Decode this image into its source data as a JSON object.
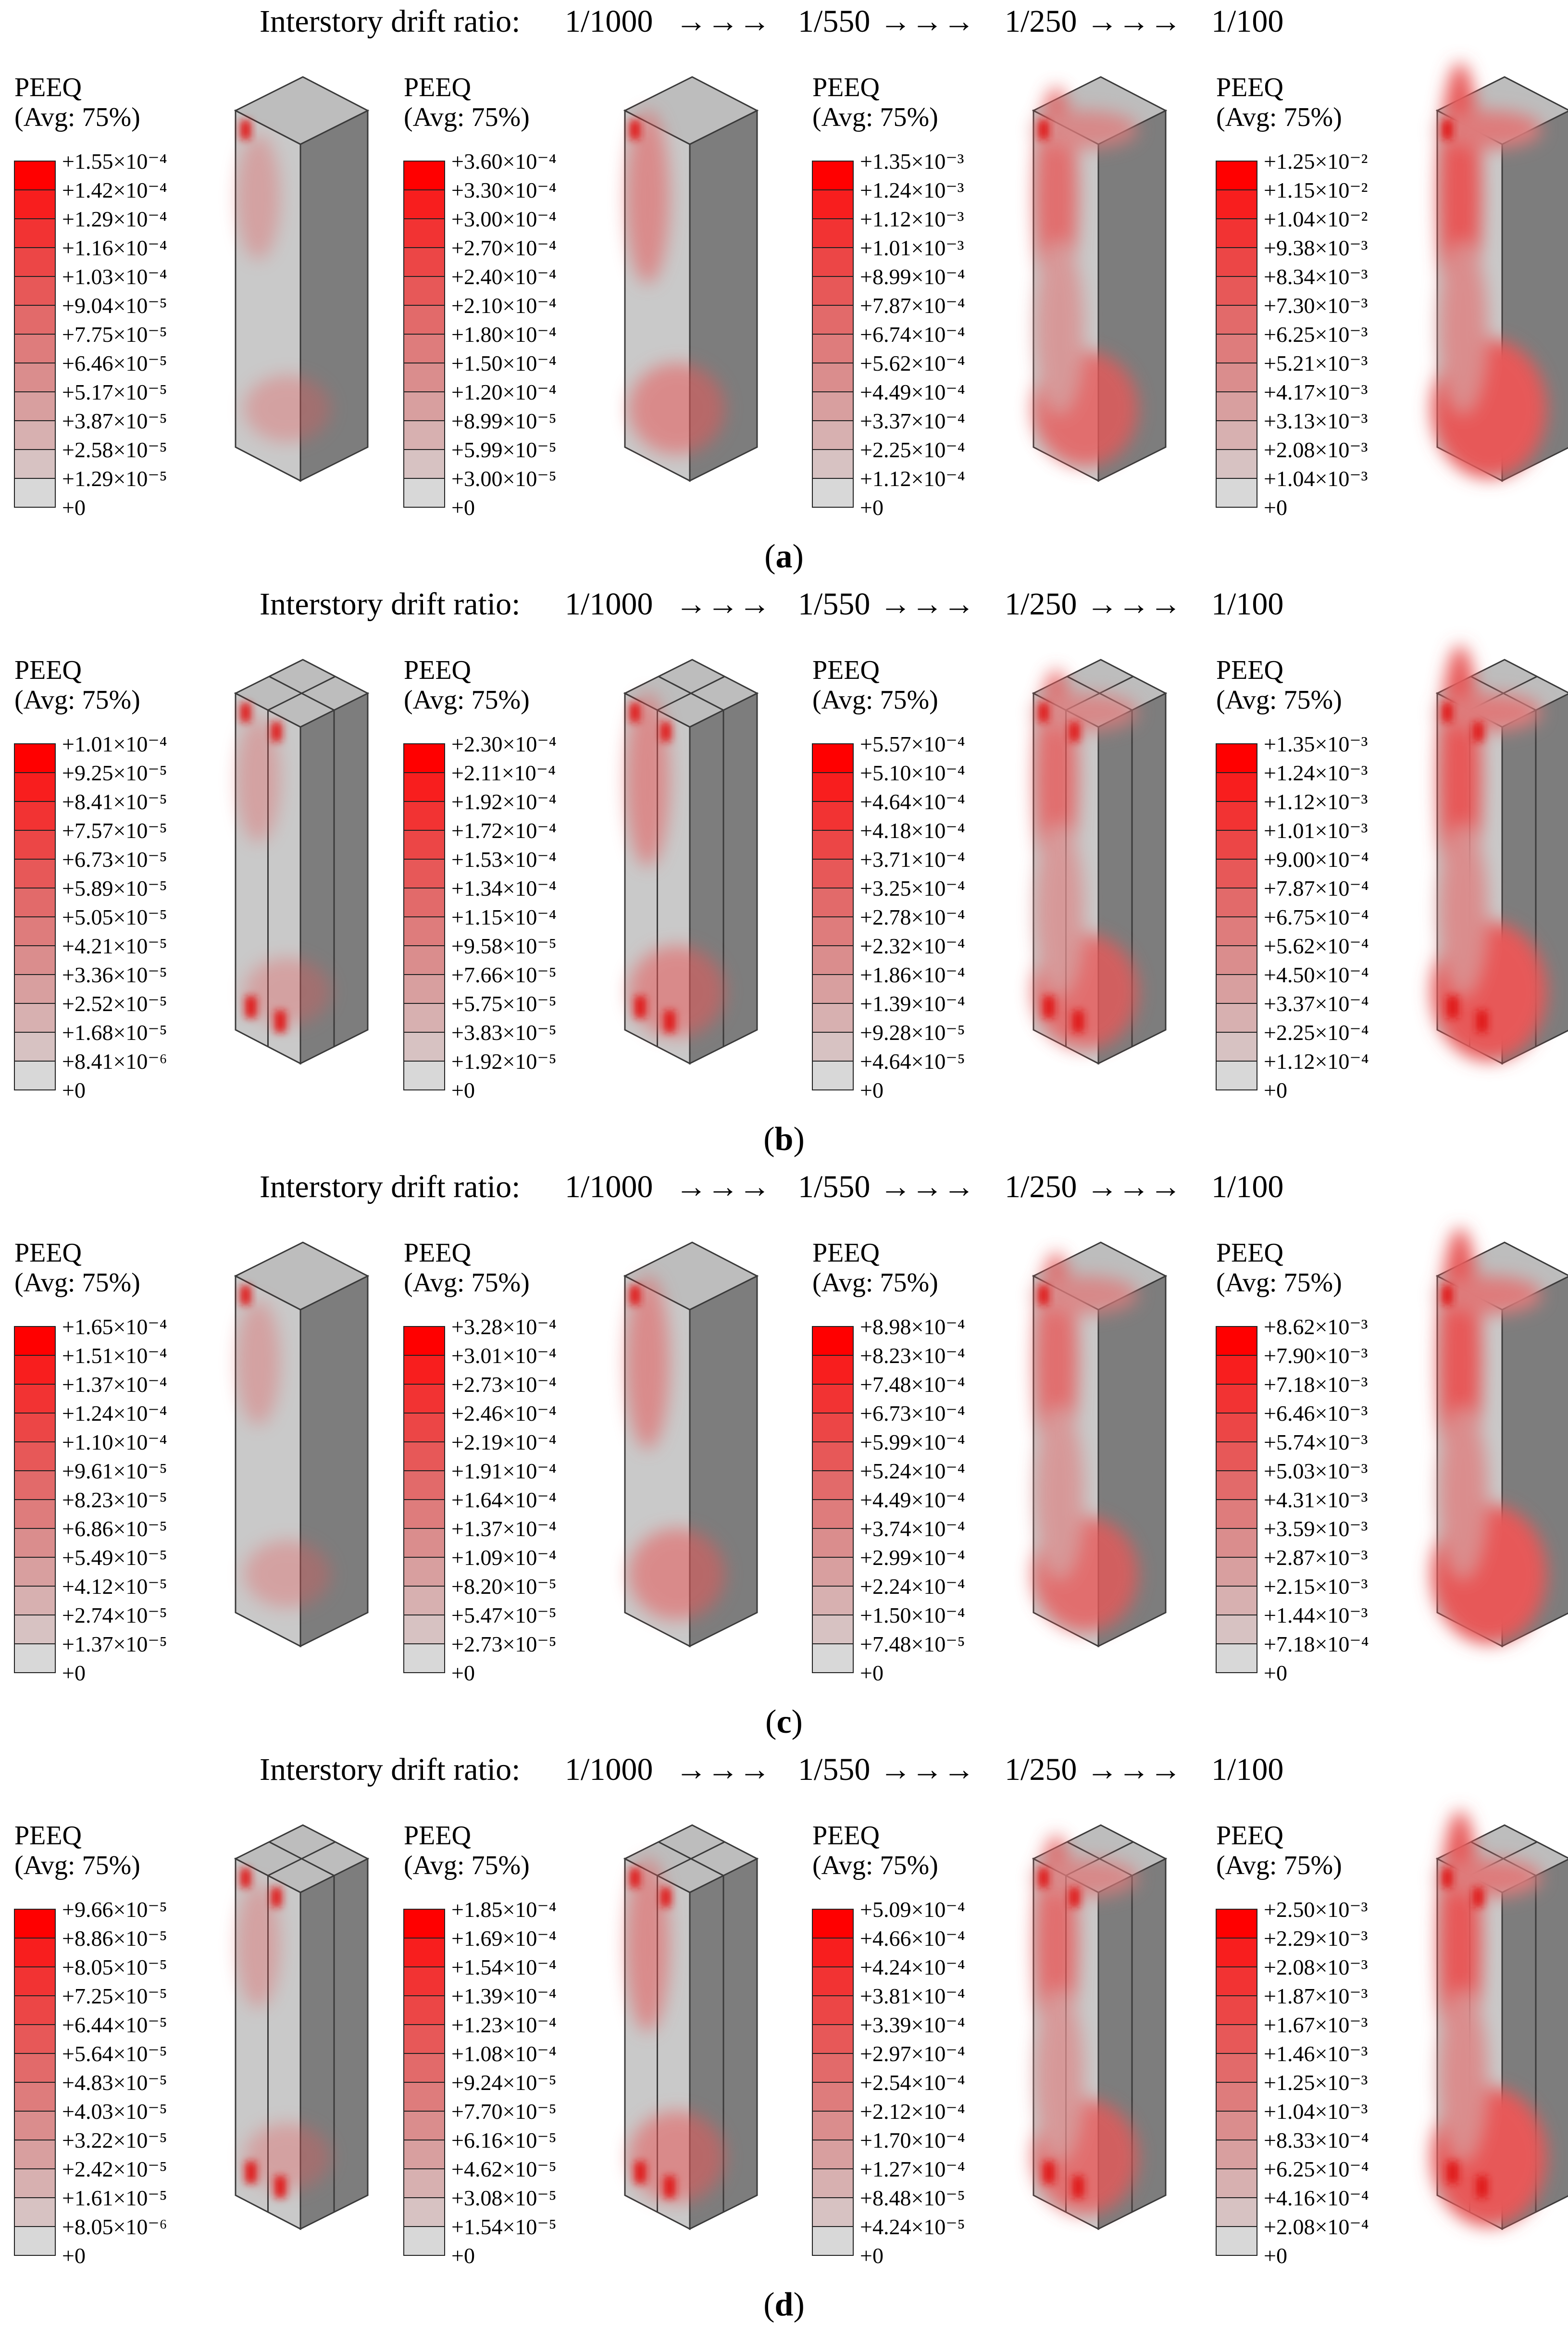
{
  "colors": {
    "scale": [
      "#ff0000",
      "#f81e1e",
      "#f23333",
      "#ec4646",
      "#e75858",
      "#e26a6a",
      "#de7c7c",
      "#da8d8d",
      "#d89f9f",
      "#d7b0b0",
      "#d7c2c2",
      "#d8d8d8"
    ],
    "faceLight": "#c9c9c9",
    "faceDark": "#7d7d7d",
    "faceTop": "#bdbdbd",
    "edge": "#3a3a3a",
    "hot": "#e01616"
  },
  "contour_header": "PEEQ",
  "contour_subheader": "(Avg: 75%)",
  "panels": [
    {
      "label_open": "(",
      "label_letter": "a",
      "label_close": ")",
      "title": {
        "text": "Interstory drift ratio:",
        "steps": [
          "1/1000",
          "1/550",
          "1/250",
          "1/100"
        ],
        "arrows": "→→→"
      },
      "subdivided": false,
      "models": [
        {
          "drift": "1/1000",
          "legend": [
            "+1.55×10⁻⁴",
            "+1.42×10⁻⁴",
            "+1.29×10⁻⁴",
            "+1.16×10⁻⁴",
            "+1.03×10⁻⁴",
            "+9.04×10⁻⁵",
            "+7.75×10⁻⁵",
            "+6.46×10⁻⁵",
            "+5.17×10⁻⁵",
            "+3.87×10⁻⁵",
            "+2.58×10⁻⁵",
            "+1.29×10⁻⁵",
            "+0"
          ]
        },
        {
          "drift": "1/550",
          "legend": [
            "+3.60×10⁻⁴",
            "+3.30×10⁻⁴",
            "+3.00×10⁻⁴",
            "+2.70×10⁻⁴",
            "+2.40×10⁻⁴",
            "+2.10×10⁻⁴",
            "+1.80×10⁻⁴",
            "+1.50×10⁻⁴",
            "+1.20×10⁻⁴",
            "+8.99×10⁻⁵",
            "+5.99×10⁻⁵",
            "+3.00×10⁻⁵",
            "+0"
          ]
        },
        {
          "drift": "1/250",
          "legend": [
            "+1.35×10⁻³",
            "+1.24×10⁻³",
            "+1.12×10⁻³",
            "+1.01×10⁻³",
            "+8.99×10⁻⁴",
            "+7.87×10⁻⁴",
            "+6.74×10⁻⁴",
            "+5.62×10⁻⁴",
            "+4.49×10⁻⁴",
            "+3.37×10⁻⁴",
            "+2.25×10⁻⁴",
            "+1.12×10⁻⁴",
            "+0"
          ]
        },
        {
          "drift": "1/100",
          "legend": [
            "+1.25×10⁻²",
            "+1.15×10⁻²",
            "+1.04×10⁻²",
            "+9.38×10⁻³",
            "+8.34×10⁻³",
            "+7.30×10⁻³",
            "+6.25×10⁻³",
            "+5.21×10⁻³",
            "+4.17×10⁻³",
            "+3.13×10⁻³",
            "+2.08×10⁻³",
            "+1.04×10⁻³",
            "+0"
          ]
        }
      ]
    },
    {
      "label_open": "(",
      "label_letter": "b",
      "label_close": ")",
      "title": {
        "text": "Interstory drift ratio:",
        "steps": [
          "1/1000",
          "1/550",
          "1/250",
          "1/100"
        ],
        "arrows": "→→→"
      },
      "subdivided": true,
      "models": [
        {
          "drift": "1/1000",
          "legend": [
            "+1.01×10⁻⁴",
            "+9.25×10⁻⁵",
            "+8.41×10⁻⁵",
            "+7.57×10⁻⁵",
            "+6.73×10⁻⁵",
            "+5.89×10⁻⁵",
            "+5.05×10⁻⁵",
            "+4.21×10⁻⁵",
            "+3.36×10⁻⁵",
            "+2.52×10⁻⁵",
            "+1.68×10⁻⁵",
            "+8.41×10⁻⁶",
            "+0"
          ]
        },
        {
          "drift": "1/550",
          "legend": [
            "+2.30×10⁻⁴",
            "+2.11×10⁻⁴",
            "+1.92×10⁻⁴",
            "+1.72×10⁻⁴",
            "+1.53×10⁻⁴",
            "+1.34×10⁻⁴",
            "+1.15×10⁻⁴",
            "+9.58×10⁻⁵",
            "+7.66×10⁻⁵",
            "+5.75×10⁻⁵",
            "+3.83×10⁻⁵",
            "+1.92×10⁻⁵",
            "+0"
          ]
        },
        {
          "drift": "1/250",
          "legend": [
            "+5.57×10⁻⁴",
            "+5.10×10⁻⁴",
            "+4.64×10⁻⁴",
            "+4.18×10⁻⁴",
            "+3.71×10⁻⁴",
            "+3.25×10⁻⁴",
            "+2.78×10⁻⁴",
            "+2.32×10⁻⁴",
            "+1.86×10⁻⁴",
            "+1.39×10⁻⁴",
            "+9.28×10⁻⁵",
            "+4.64×10⁻⁵",
            "+0"
          ]
        },
        {
          "drift": "1/100",
          "legend": [
            "+1.35×10⁻³",
            "+1.24×10⁻³",
            "+1.12×10⁻³",
            "+1.01×10⁻³",
            "+9.00×10⁻⁴",
            "+7.87×10⁻⁴",
            "+6.75×10⁻⁴",
            "+5.62×10⁻⁴",
            "+4.50×10⁻⁴",
            "+3.37×10⁻⁴",
            "+2.25×10⁻⁴",
            "+1.12×10⁻⁴",
            "+0"
          ]
        }
      ]
    },
    {
      "label_open": "(",
      "label_letter": "c",
      "label_close": ")",
      "title": {
        "text": "Interstory drift ratio:",
        "steps": [
          "1/1000",
          "1/550",
          "1/250",
          "1/100"
        ],
        "arrows": "→→→"
      },
      "subdivided": false,
      "models": [
        {
          "drift": "1/1000",
          "legend": [
            "+1.65×10⁻⁴",
            "+1.51×10⁻⁴",
            "+1.37×10⁻⁴",
            "+1.24×10⁻⁴",
            "+1.10×10⁻⁴",
            "+9.61×10⁻⁵",
            "+8.23×10⁻⁵",
            "+6.86×10⁻⁵",
            "+5.49×10⁻⁵",
            "+4.12×10⁻⁵",
            "+2.74×10⁻⁵",
            "+1.37×10⁻⁵",
            "+0"
          ]
        },
        {
          "drift": "1/550",
          "legend": [
            "+3.28×10⁻⁴",
            "+3.01×10⁻⁴",
            "+2.73×10⁻⁴",
            "+2.46×10⁻⁴",
            "+2.19×10⁻⁴",
            "+1.91×10⁻⁴",
            "+1.64×10⁻⁴",
            "+1.37×10⁻⁴",
            "+1.09×10⁻⁴",
            "+8.20×10⁻⁵",
            "+5.47×10⁻⁵",
            "+2.73×10⁻⁵",
            "+0"
          ]
        },
        {
          "drift": "1/250",
          "legend": [
            "+8.98×10⁻⁴",
            "+8.23×10⁻⁴",
            "+7.48×10⁻⁴",
            "+6.73×10⁻⁴",
            "+5.99×10⁻⁴",
            "+5.24×10⁻⁴",
            "+4.49×10⁻⁴",
            "+3.74×10⁻⁴",
            "+2.99×10⁻⁴",
            "+2.24×10⁻⁴",
            "+1.50×10⁻⁴",
            "+7.48×10⁻⁵",
            "+0"
          ]
        },
        {
          "drift": "1/100",
          "legend": [
            "+8.62×10⁻³",
            "+7.90×10⁻³",
            "+7.18×10⁻³",
            "+6.46×10⁻³",
            "+5.74×10⁻³",
            "+5.03×10⁻³",
            "+4.31×10⁻³",
            "+3.59×10⁻³",
            "+2.87×10⁻³",
            "+2.15×10⁻³",
            "+1.44×10⁻³",
            "+7.18×10⁻⁴",
            "+0"
          ]
        }
      ]
    },
    {
      "label_open": "(",
      "label_letter": "d",
      "label_close": ")",
      "title": {
        "text": "Interstory drift ratio:",
        "steps": [
          "1/1000",
          "1/550",
          "1/250",
          "1/100"
        ],
        "arrows": "→→→"
      },
      "subdivided": true,
      "models": [
        {
          "drift": "1/1000",
          "legend": [
            "+9.66×10⁻⁵",
            "+8.86×10⁻⁵",
            "+8.05×10⁻⁵",
            "+7.25×10⁻⁵",
            "+6.44×10⁻⁵",
            "+5.64×10⁻⁵",
            "+4.83×10⁻⁵",
            "+4.03×10⁻⁵",
            "+3.22×10⁻⁵",
            "+2.42×10⁻⁵",
            "+1.61×10⁻⁵",
            "+8.05×10⁻⁶",
            "+0"
          ]
        },
        {
          "drift": "1/550",
          "legend": [
            "+1.85×10⁻⁴",
            "+1.69×10⁻⁴",
            "+1.54×10⁻⁴",
            "+1.39×10⁻⁴",
            "+1.23×10⁻⁴",
            "+1.08×10⁻⁴",
            "+9.24×10⁻⁵",
            "+7.70×10⁻⁵",
            "+6.16×10⁻⁵",
            "+4.62×10⁻⁵",
            "+3.08×10⁻⁵",
            "+1.54×10⁻⁵",
            "+0"
          ]
        },
        {
          "drift": "1/250",
          "legend": [
            "+5.09×10⁻⁴",
            "+4.66×10⁻⁴",
            "+4.24×10⁻⁴",
            "+3.81×10⁻⁴",
            "+3.39×10⁻⁴",
            "+2.97×10⁻⁴",
            "+2.54×10⁻⁴",
            "+2.12×10⁻⁴",
            "+1.70×10⁻⁴",
            "+1.27×10⁻⁴",
            "+8.48×10⁻⁵",
            "+4.24×10⁻⁵",
            "+0"
          ]
        },
        {
          "drift": "1/100",
          "legend": [
            "+2.50×10⁻³",
            "+2.29×10⁻³",
            "+2.08×10⁻³",
            "+1.87×10⁻³",
            "+1.67×10⁻³",
            "+1.46×10⁻³",
            "+1.25×10⁻³",
            "+1.04×10⁻³",
            "+8.33×10⁻⁴",
            "+6.25×10⁻⁴",
            "+4.16×10⁻⁴",
            "+2.08×10⁻⁴",
            "+0"
          ]
        }
      ]
    }
  ]
}
